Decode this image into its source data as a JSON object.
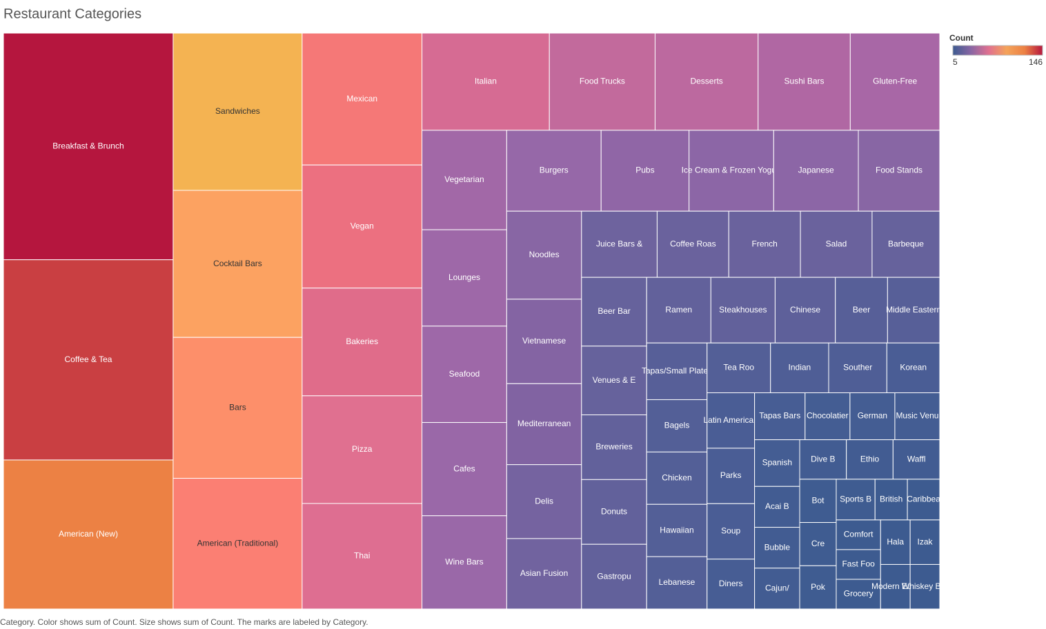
{
  "chart_data": {
    "type": "treemap",
    "title": "Restaurant Categories",
    "caption": "Category.  Color shows sum of Count.  Size shows sum of Count.  The marks are labeled by Category.",
    "categories": [
      "Breakfast & Brunch",
      "Coffee & Tea",
      "American (New)",
      "Sandwiches",
      "Cocktail Bars",
      "Bars",
      "American (Traditional)",
      "Mexican",
      "Vegan",
      "Bakeries",
      "Pizza",
      "Thai",
      "Italian",
      "Food Trucks",
      "Desserts",
      "Sushi Bars",
      "Gluten-Free",
      "Vegetarian",
      "Lounges",
      "Seafood",
      "Cafes",
      "Wine Bars",
      "Burgers",
      "Pubs",
      "Ice Cream & Frozen Yogurt",
      "Japanese",
      "Food Stands",
      "Noodles",
      "Vietnamese",
      "Mediterranean",
      "Delis",
      "Asian Fusion",
      "Juice Bars &",
      "Coffee Roas",
      "French",
      "Salad",
      "Barbeque",
      "Beer Bar",
      "Venues & E",
      "Breweries",
      "Donuts",
      "Gastropu",
      "Ramen",
      "Steakhouses",
      "Chinese",
      "Beer",
      "Middle Eastern",
      "Tapas/Small Plates",
      "Bagels",
      "Chicken",
      "Hawaiian",
      "Lebanese",
      "Tea Roo",
      "Indian",
      "Souther",
      "Korean",
      "Latin American",
      "Parks",
      "Soup",
      "Diners",
      "Tapas Bars",
      "Chocolatier",
      "German",
      "Music Venu",
      "Spanish",
      "Acai B",
      "Bubble",
      "Cajun/",
      "Dive B",
      "Ethio",
      "Waffl",
      "Bot",
      "Cre",
      "Pok",
      "Sports B",
      "British",
      "Caribbea",
      "Comfort",
      "Fast Foo",
      "Grocery",
      "Hala",
      "Izak",
      "Modern Euro",
      "Whiskey Bar"
    ],
    "values": [
      146,
      129,
      96,
      77,
      72,
      69,
      64,
      60,
      56,
      49,
      49,
      48,
      47,
      39,
      38,
      34,
      33,
      32,
      31,
      31,
      30,
      30,
      29,
      27,
      26,
      26,
      25,
      25,
      24,
      23,
      21,
      20,
      19,
      18,
      18,
      18,
      17,
      17,
      17,
      16,
      16,
      16,
      16,
      16,
      15,
      13,
      13,
      13,
      12,
      12,
      12,
      12,
      12,
      11,
      11,
      10,
      10,
      10,
      10,
      9,
      9,
      8,
      8,
      8,
      8,
      7,
      7,
      7,
      7,
      7,
      7,
      6,
      6,
      6,
      6,
      5,
      5,
      5,
      5,
      5,
      5,
      5,
      5,
      5
    ],
    "colors": [
      "#b5163e",
      "#c93f42",
      "#ec8144",
      "#f4b352",
      "#fca261",
      "#fd8f6a",
      "#fb7f73",
      "#f57877",
      "#ec7080",
      "#e06c8a",
      "#e07090",
      "#de6e91",
      "#d66b93",
      "#c26a9c",
      "#bc699f",
      "#b067a3",
      "#a867a6",
      "#a268a7",
      "#9e68a8",
      "#9e68a8",
      "#9a68a8",
      "#9a68a8",
      "#9668a8",
      "#9066a6",
      "#8c66a6",
      "#8c66a6",
      "#8866a4",
      "#8866a4",
      "#8464a3",
      "#8163a2",
      "#7563a0",
      "#71639f",
      "#6e639e",
      "#6a629d",
      "#6a629d",
      "#6a629d",
      "#66629c",
      "#66629c",
      "#66629c",
      "#62619b",
      "#62619b",
      "#62619b",
      "#62619b",
      "#62619b",
      "#5e609a",
      "#575f98",
      "#575f98",
      "#575f98",
      "#535f97",
      "#535f97",
      "#535f97",
      "#535f97",
      "#535f97",
      "#4f5e96",
      "#4f5e96",
      "#4a5d95",
      "#4a5d95",
      "#4a5d95",
      "#4a5d95",
      "#475d94",
      "#475d94",
      "#445d93",
      "#445d93",
      "#445d93",
      "#445d93",
      "#425c92",
      "#425c92",
      "#425c92",
      "#425c92",
      "#425c92",
      "#425c92",
      "#3f5c91",
      "#3f5c91",
      "#3f5c91",
      "#3f5c91",
      "#3d5b90",
      "#3d5b90",
      "#3d5b90",
      "#3d5b90",
      "#3d5b90",
      "#3d5b90",
      "#3d5b90",
      "#3d5b90",
      "#3d5b90"
    ],
    "color_scale": {
      "title": "Count",
      "lim": [
        5,
        146
      ],
      "colors": [
        "#3d5b90",
        "#8866a4",
        "#e07090",
        "#f4a35a",
        "#ec8144",
        "#b5163e"
      ]
    }
  }
}
